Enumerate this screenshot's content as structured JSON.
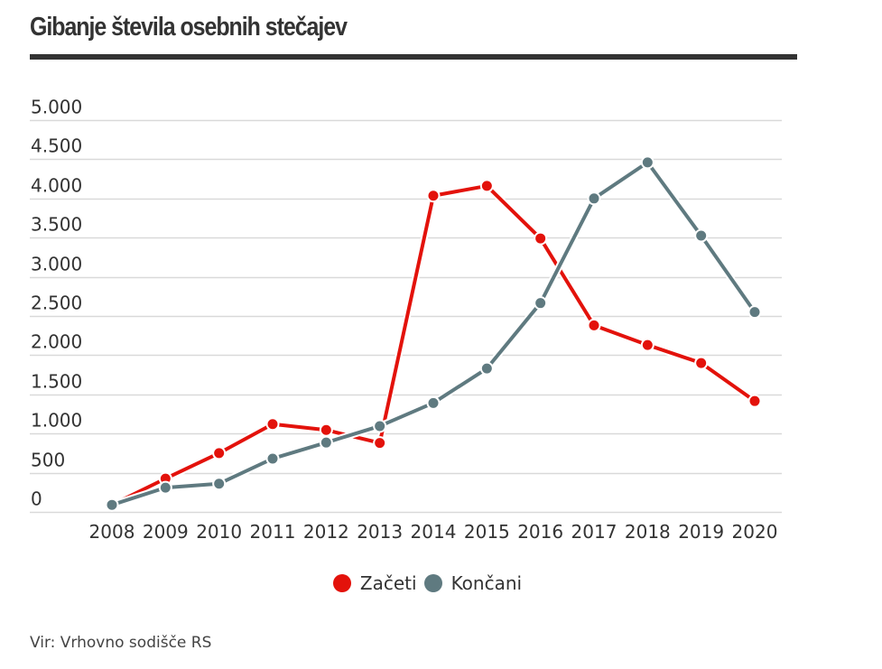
{
  "title": "Gibanje števila osebnih stečajev",
  "source": "Vir: Vrhovno sodišče RS",
  "chart_data": {
    "type": "line",
    "title": "Gibanje števila osebnih stečajev",
    "xlabel": "",
    "ylabel": "",
    "x": [
      "2008",
      "2009",
      "2010",
      "2011",
      "2012",
      "2013",
      "2014",
      "2015",
      "2016",
      "2017",
      "2018",
      "2019",
      "2020"
    ],
    "ylim": [
      0,
      5000
    ],
    "yticks": [
      0,
      500,
      1000,
      1500,
      2000,
      2500,
      3000,
      3500,
      4000,
      4500,
      5000
    ],
    "ytick_labels": [
      "0",
      "500",
      "1.000",
      "1.500",
      "2.000",
      "2.500",
      "3.000",
      "3.500",
      "4.000",
      "4.500",
      "5.000"
    ],
    "grid": true,
    "legend_position": "bottom-center",
    "series": [
      {
        "name": "Začeti",
        "color": "#e3120b",
        "values": [
          90,
          425,
          750,
          1120,
          1045,
          880,
          4035,
          4160,
          3490,
          2380,
          2130,
          1900,
          1415
        ]
      },
      {
        "name": "Končani",
        "color": "#5f7a80",
        "values": [
          90,
          310,
          360,
          680,
          885,
          1095,
          1390,
          1830,
          2665,
          4000,
          4460,
          3525,
          2550
        ]
      }
    ]
  },
  "legend": [
    {
      "label": "Začeti",
      "color": "#e3120b"
    },
    {
      "label": "Končani",
      "color": "#5f7a80"
    }
  ]
}
